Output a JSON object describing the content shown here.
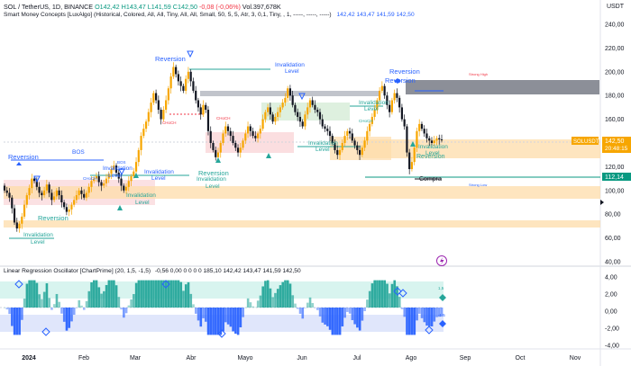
{
  "header": {
    "symbol": "SOL / TetherUS, 1D, BINANCE",
    "ohlc": "O142,42  H143,47  L141,59  C142,50",
    "change": "-0,08 (-0,06%)",
    "volume": "Vol.397,678K",
    "currency": "USDT"
  },
  "indicator1": {
    "name": "Smart Money Concepts [LuxAlgo] (Historical, Colored, All, All, Tiny, All, All, Small, 50, 5, 5, Atr, 3, 0,1, Tiny, , 1, -----, -----, -----)",
    "values": "142,42  143,47  141,59  142,50"
  },
  "indicator2": {
    "name": "Linear Regression Oscillator [ChartPrime] (20, 1,5, -1,5)",
    "values": "-0,56  0,00  0  0  0  0  185,10  142,42  143,47  141,59  142,50"
  },
  "price_axis": {
    "labels": [
      "240,00",
      "220,00",
      "200,00",
      "180,00",
      "160,00",
      "140,00",
      "120,00",
      "100,00",
      "80,00",
      "60,00",
      "40,00"
    ],
    "symbol_tag": "SOLUSDT",
    "last_price": "142,50",
    "countdown": "20:48:15",
    "level_tag": "112,14"
  },
  "osc_axis": {
    "labels": [
      "4,00",
      "2,00",
      "0,00",
      "-2,00",
      "-4,00"
    ],
    "tag_up": "1,5",
    "tag_down": "-1,5"
  },
  "time_axis": {
    "labels": [
      "2024",
      "Feb",
      "Mar",
      "Abr",
      "Mayo",
      "Jun",
      "Jul",
      "Ago",
      "Sep",
      "Oct",
      "Nov"
    ]
  },
  "annotations": {
    "reversion": "Reversion",
    "invalidation": "Invalidation",
    "level": "Level",
    "bos": "BOS",
    "choch": "CHoCH",
    "compra": "Compra",
    "strong_high": "Strong High",
    "strong_low": "Strong Low"
  },
  "colors": {
    "up": "#f7a600",
    "down": "#131722",
    "teal": "#26a69a",
    "blue": "#2962ff",
    "red": "#f23645",
    "orange_zone": "#fddcaa",
    "pink_zone": "#f8c8cc",
    "grey_zone": "#b2b5be"
  },
  "chart_data": {
    "type": "candlestick",
    "ylim": [
      40,
      245
    ],
    "close": [
      100,
      98,
      94,
      85,
      73,
      68,
      72,
      78,
      88,
      96,
      102,
      110,
      108,
      103,
      98,
      96,
      100,
      105,
      98,
      92,
      95,
      100,
      96,
      90,
      86,
      82,
      84,
      88,
      92,
      96,
      100,
      97,
      94,
      98,
      103,
      108,
      110,
      112,
      107,
      104,
      106,
      110,
      114,
      118,
      121,
      115,
      110,
      104,
      100,
      103,
      108,
      112,
      116,
      124,
      134,
      146,
      152,
      158,
      166,
      174,
      182,
      176,
      168,
      160,
      168,
      176,
      186,
      196,
      204,
      198,
      192,
      188,
      184,
      194,
      200,
      192,
      184,
      176,
      170,
      164,
      172,
      168,
      150,
      140,
      134,
      128,
      132,
      140,
      148,
      154,
      150,
      146,
      140,
      136,
      132,
      136,
      142,
      148,
      154,
      150,
      146,
      144,
      148,
      152,
      160,
      166,
      170,
      164,
      158,
      162,
      166,
      170,
      174,
      178,
      186,
      180,
      172,
      166,
      162,
      158,
      154,
      164,
      170,
      176,
      172,
      168,
      166,
      160,
      154,
      152,
      150,
      146,
      140,
      134,
      130,
      134,
      140,
      146,
      150,
      148,
      142,
      138,
      134,
      130,
      136,
      142,
      150,
      156,
      162,
      168,
      176,
      184,
      188,
      180,
      172,
      166,
      176,
      182,
      178,
      170,
      160,
      154,
      132,
      118,
      124,
      136,
      150,
      156,
      152,
      148,
      144,
      142,
      140,
      142,
      144,
      143,
      142.5
    ]
  }
}
